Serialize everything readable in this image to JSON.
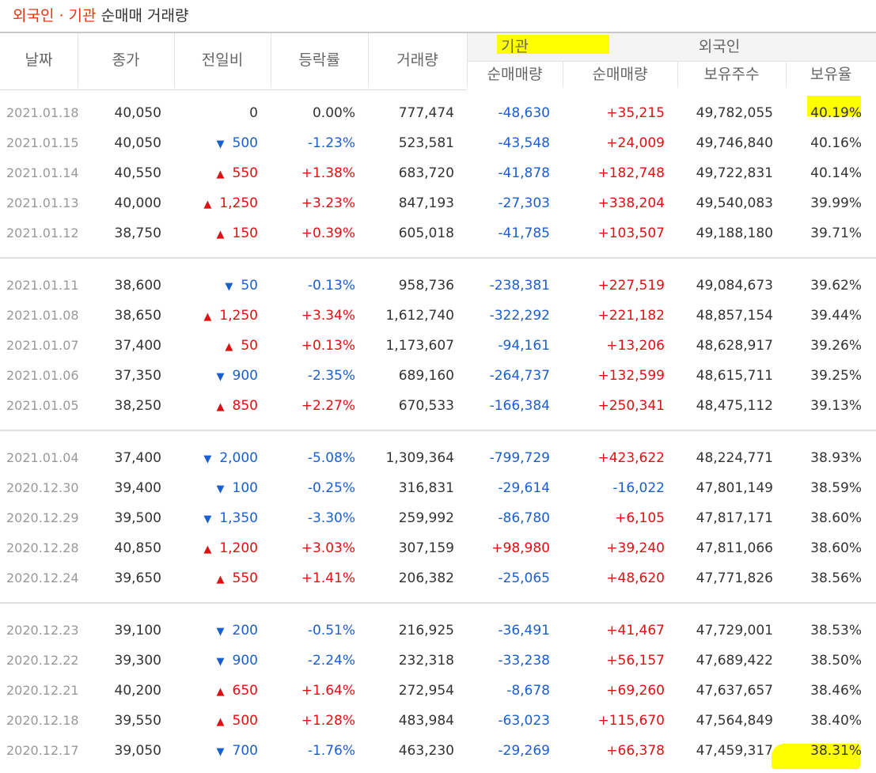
{
  "title": {
    "part1": "외국인 · 기관",
    "part2": "순매매 거래량"
  },
  "headers": {
    "date": "날짜",
    "close": "종가",
    "diff": "전일비",
    "rate": "등락률",
    "volume": "거래량",
    "institution": "기관",
    "foreign": "외국인",
    "inst_net": "순매매량",
    "foreign_net": "순매매량",
    "holdings": "보유주수",
    "ratio": "보유율"
  },
  "colors": {
    "up": "#dd1111",
    "down": "#1a5fd0",
    "highlight": "#ffff00"
  },
  "groups": [
    [
      {
        "date": "2021.01.18",
        "close": "40,050",
        "dir": "zero",
        "diff": "0",
        "rate": "0.00%",
        "volume": "777,474",
        "inst": "-48,630",
        "foreign": "+35,215",
        "holdings": "49,782,055",
        "ratio": "40.19%"
      },
      {
        "date": "2021.01.15",
        "close": "40,050",
        "dir": "down",
        "diff": "500",
        "rate": "-1.23%",
        "volume": "523,581",
        "inst": "-43,548",
        "foreign": "+24,009",
        "holdings": "49,746,840",
        "ratio": "40.16%"
      },
      {
        "date": "2021.01.14",
        "close": "40,550",
        "dir": "up",
        "diff": "550",
        "rate": "+1.38%",
        "volume": "683,720",
        "inst": "-41,878",
        "foreign": "+182,748",
        "holdings": "49,722,831",
        "ratio": "40.14%"
      },
      {
        "date": "2021.01.13",
        "close": "40,000",
        "dir": "up",
        "diff": "1,250",
        "rate": "+3.23%",
        "volume": "847,193",
        "inst": "-27,303",
        "foreign": "+338,204",
        "holdings": "49,540,083",
        "ratio": "39.99%"
      },
      {
        "date": "2021.01.12",
        "close": "38,750",
        "dir": "up",
        "diff": "150",
        "rate": "+0.39%",
        "volume": "605,018",
        "inst": "-41,785",
        "foreign": "+103,507",
        "holdings": "49,188,180",
        "ratio": "39.71%"
      }
    ],
    [
      {
        "date": "2021.01.11",
        "close": "38,600",
        "dir": "down",
        "diff": "50",
        "rate": "-0.13%",
        "volume": "958,736",
        "inst": "-238,381",
        "foreign": "+227,519",
        "holdings": "49,084,673",
        "ratio": "39.62%"
      },
      {
        "date": "2021.01.08",
        "close": "38,650",
        "dir": "up",
        "diff": "1,250",
        "rate": "+3.34%",
        "volume": "1,612,740",
        "inst": "-322,292",
        "foreign": "+221,182",
        "holdings": "48,857,154",
        "ratio": "39.44%"
      },
      {
        "date": "2021.01.07",
        "close": "37,400",
        "dir": "up",
        "diff": "50",
        "rate": "+0.13%",
        "volume": "1,173,607",
        "inst": "-94,161",
        "foreign": "+13,206",
        "holdings": "48,628,917",
        "ratio": "39.26%"
      },
      {
        "date": "2021.01.06",
        "close": "37,350",
        "dir": "down",
        "diff": "900",
        "rate": "-2.35%",
        "volume": "689,160",
        "inst": "-264,737",
        "foreign": "+132,599",
        "holdings": "48,615,711",
        "ratio": "39.25%"
      },
      {
        "date": "2021.01.05",
        "close": "38,250",
        "dir": "up",
        "diff": "850",
        "rate": "+2.27%",
        "volume": "670,533",
        "inst": "-166,384",
        "foreign": "+250,341",
        "holdings": "48,475,112",
        "ratio": "39.13%"
      }
    ],
    [
      {
        "date": "2021.01.04",
        "close": "37,400",
        "dir": "down",
        "diff": "2,000",
        "rate": "-5.08%",
        "volume": "1,309,364",
        "inst": "-799,729",
        "foreign": "+423,622",
        "holdings": "48,224,771",
        "ratio": "38.93%"
      },
      {
        "date": "2020.12.30",
        "close": "39,400",
        "dir": "down",
        "diff": "100",
        "rate": "-0.25%",
        "volume": "316,831",
        "inst": "-29,614",
        "foreign": "-16,022",
        "holdings": "47,801,149",
        "ratio": "38.59%"
      },
      {
        "date": "2020.12.29",
        "close": "39,500",
        "dir": "down",
        "diff": "1,350",
        "rate": "-3.30%",
        "volume": "259,992",
        "inst": "-86,780",
        "foreign": "+6,105",
        "holdings": "47,817,171",
        "ratio": "38.60%"
      },
      {
        "date": "2020.12.28",
        "close": "40,850",
        "dir": "up",
        "diff": "1,200",
        "rate": "+3.03%",
        "volume": "307,159",
        "inst": "+98,980",
        "foreign": "+39,240",
        "holdings": "47,811,066",
        "ratio": "38.60%"
      },
      {
        "date": "2020.12.24",
        "close": "39,650",
        "dir": "up",
        "diff": "550",
        "rate": "+1.41%",
        "volume": "206,382",
        "inst": "-25,065",
        "foreign": "+48,620",
        "holdings": "47,771,826",
        "ratio": "38.56%"
      }
    ],
    [
      {
        "date": "2020.12.23",
        "close": "39,100",
        "dir": "down",
        "diff": "200",
        "rate": "-0.51%",
        "volume": "216,925",
        "inst": "-36,491",
        "foreign": "+41,467",
        "holdings": "47,729,001",
        "ratio": "38.53%"
      },
      {
        "date": "2020.12.22",
        "close": "39,300",
        "dir": "down",
        "diff": "900",
        "rate": "-2.24%",
        "volume": "232,318",
        "inst": "-33,238",
        "foreign": "+56,157",
        "holdings": "47,689,422",
        "ratio": "38.50%"
      },
      {
        "date": "2020.12.21",
        "close": "40,200",
        "dir": "up",
        "diff": "650",
        "rate": "+1.64%",
        "volume": "272,954",
        "inst": "-8,678",
        "foreign": "+69,260",
        "holdings": "47,637,657",
        "ratio": "38.46%"
      },
      {
        "date": "2020.12.18",
        "close": "39,550",
        "dir": "up",
        "diff": "500",
        "rate": "+1.28%",
        "volume": "483,984",
        "inst": "-63,023",
        "foreign": "+115,670",
        "holdings": "47,564,849",
        "ratio": "38.40%"
      },
      {
        "date": "2020.12.17",
        "close": "39,050",
        "dir": "down",
        "diff": "700",
        "rate": "-1.76%",
        "volume": "463,230",
        "inst": "-29,269",
        "foreign": "+66,378",
        "holdings": "47,459,317",
        "ratio": "38.31%"
      }
    ]
  ]
}
